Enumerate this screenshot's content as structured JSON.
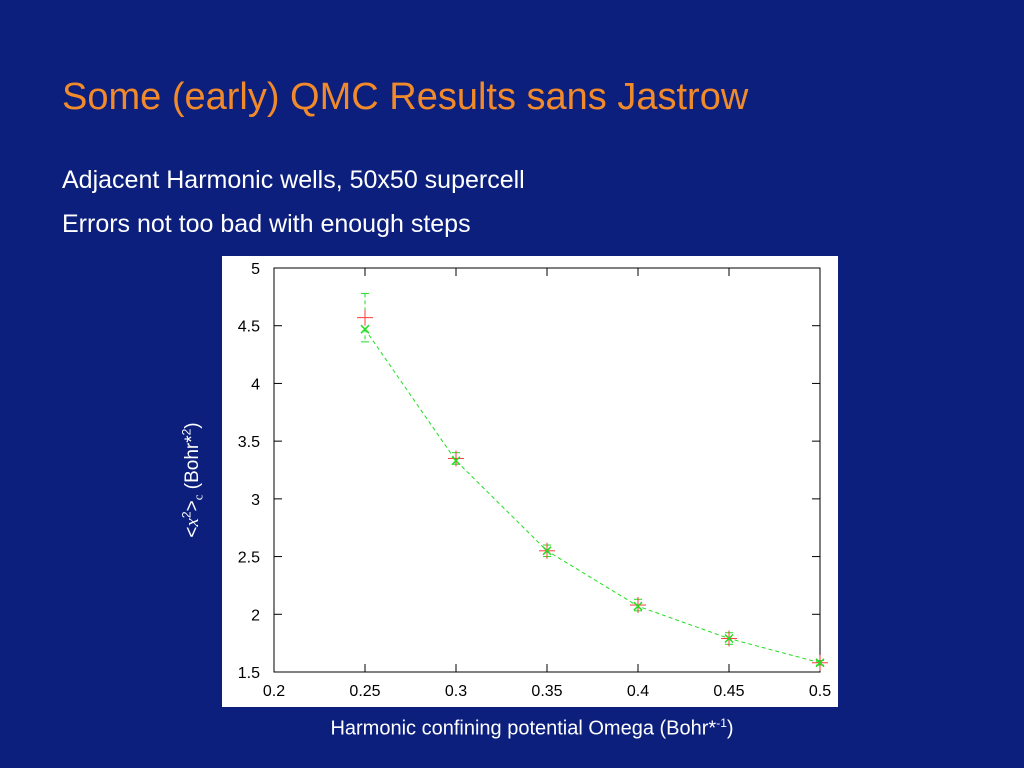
{
  "slide": {
    "title": "Some (early) QMC Results sans Jastrow",
    "bullets": [
      "Adjacent Harmonic wells, 50x50 supercell",
      "Errors not too bad with enough steps"
    ]
  },
  "colors": {
    "background": "#0d1f7d",
    "title": "#f08a2a",
    "text": "#ffffff",
    "series_red": "#ff3b3b",
    "series_green": "#22dd22"
  },
  "axis_labels": {
    "y_open": "<",
    "y_var": "x",
    "y_sup": "2",
    "y_close": ">",
    "y_sub": "c",
    "y_unit_prefix": " (Bohr*",
    "y_unit_sup": "2",
    "y_unit_suffix": ")",
    "x_text": "Harmonic confining potential Omega (Bohr*",
    "x_sup": "-1",
    "x_suffix": ")"
  },
  "chart_data": {
    "type": "scatter",
    "title": "",
    "xlim": [
      0.2,
      0.5
    ],
    "ylim": [
      1.5,
      5
    ],
    "xticks": [
      "0.2",
      "0.25",
      "0.3",
      "0.35",
      "0.4",
      "0.45",
      "0.5"
    ],
    "yticks": [
      "1.5",
      "2",
      "2.5",
      "3",
      "3.5",
      "4",
      "4.5",
      "5"
    ],
    "grid": false,
    "series": [
      {
        "marker": "plus",
        "color": "red",
        "x": [
          0.25,
          0.3,
          0.35,
          0.4,
          0.45,
          0.5
        ],
        "y": [
          4.57,
          3.35,
          2.55,
          2.08,
          1.79,
          1.58
        ],
        "error": [
          0.21,
          0.05,
          0.05,
          0.05,
          0.05,
          0.02
        ]
      },
      {
        "marker": "x",
        "color": "green",
        "line": "dashed",
        "x": [
          0.25,
          0.3,
          0.35,
          0.4,
          0.45,
          0.5
        ],
        "y": [
          4.47,
          3.33,
          2.55,
          2.07,
          1.79,
          1.58
        ]
      }
    ]
  }
}
